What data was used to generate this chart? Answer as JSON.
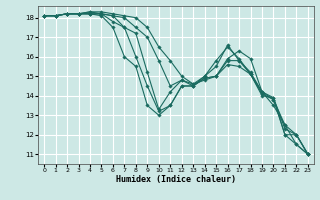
{
  "xlabel": "Humidex (Indice chaleur)",
  "bg_color": "#cde8e5",
  "grid_color": "#ffffff",
  "line_color": "#1a6b60",
  "xlim": [
    -0.5,
    23.5
  ],
  "ylim": [
    10.5,
    18.6
  ],
  "yticks": [
    11,
    12,
    13,
    14,
    15,
    16,
    17,
    18
  ],
  "xticks": [
    0,
    1,
    2,
    3,
    4,
    5,
    6,
    7,
    8,
    9,
    10,
    11,
    12,
    13,
    14,
    15,
    16,
    17,
    18,
    19,
    20,
    21,
    22,
    23
  ],
  "lines": [
    {
      "x": [
        0,
        1,
        2,
        3,
        4,
        5,
        6,
        7,
        8,
        9,
        10,
        11,
        12,
        13,
        14,
        15,
        16,
        17,
        18,
        19,
        20,
        21,
        22,
        23
      ],
      "y": [
        18.1,
        18.1,
        18.2,
        18.2,
        18.2,
        18.1,
        17.5,
        16.0,
        15.5,
        13.5,
        13.0,
        13.5,
        14.5,
        14.5,
        15.0,
        15.8,
        16.5,
        15.9,
        15.1,
        14.1,
        13.8,
        12.0,
        12.0,
        11.0
      ]
    },
    {
      "x": [
        0,
        1,
        2,
        3,
        4,
        5,
        6,
        7,
        8,
        9,
        10,
        11,
        12,
        13,
        14,
        15,
        16,
        17,
        18,
        19,
        20,
        21,
        22,
        23
      ],
      "y": [
        18.1,
        18.1,
        18.2,
        18.2,
        18.2,
        18.2,
        17.8,
        17.5,
        16.0,
        14.5,
        13.2,
        13.5,
        14.5,
        14.5,
        14.9,
        15.0,
        15.6,
        15.5,
        15.1,
        14.0,
        13.9,
        12.0,
        11.5,
        11.0
      ]
    },
    {
      "x": [
        0,
        1,
        2,
        3,
        4,
        5,
        6,
        7,
        8,
        9,
        10,
        11,
        12,
        13,
        14,
        15,
        16,
        17,
        18,
        19,
        20,
        21,
        22,
        23
      ],
      "y": [
        18.1,
        18.1,
        18.2,
        18.2,
        18.2,
        18.2,
        18.1,
        17.5,
        17.2,
        15.2,
        13.3,
        14.2,
        14.8,
        14.6,
        15.0,
        15.5,
        16.6,
        15.8,
        15.1,
        14.2,
        13.9,
        12.3,
        12.0,
        11.0
      ]
    },
    {
      "x": [
        0,
        1,
        2,
        3,
        4,
        5,
        6,
        7,
        8,
        9,
        10,
        11,
        12,
        13,
        14,
        15,
        16,
        17,
        18,
        19,
        20,
        21,
        22,
        23
      ],
      "y": [
        18.1,
        18.1,
        18.2,
        18.2,
        18.3,
        18.2,
        18.1,
        18.0,
        17.5,
        17.0,
        15.8,
        14.5,
        14.8,
        14.5,
        14.9,
        15.0,
        15.9,
        16.3,
        15.9,
        14.2,
        13.5,
        12.5,
        12.0,
        11.0
      ]
    },
    {
      "x": [
        0,
        1,
        2,
        3,
        4,
        5,
        6,
        7,
        8,
        9,
        10,
        11,
        12,
        13,
        14,
        15,
        16,
        17,
        18,
        19,
        20,
        21,
        22,
        23
      ],
      "y": [
        18.1,
        18.1,
        18.2,
        18.2,
        18.3,
        18.3,
        18.2,
        18.1,
        18.0,
        17.5,
        16.5,
        15.8,
        15.0,
        14.6,
        14.8,
        15.0,
        15.8,
        15.8,
        15.2,
        14.2,
        13.8,
        12.5,
        11.5,
        11.0
      ]
    }
  ]
}
